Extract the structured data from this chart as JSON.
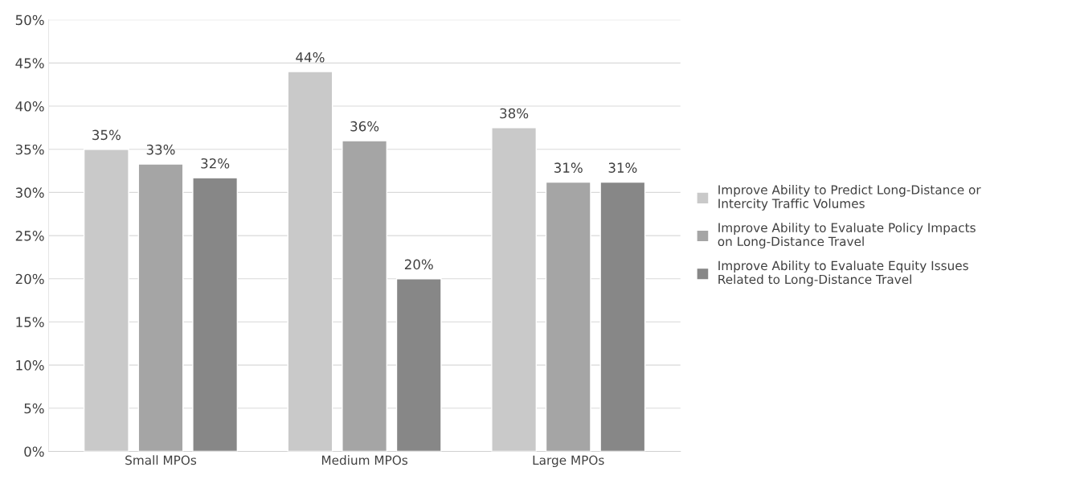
{
  "chart_data": {
    "type": "bar",
    "categories": [
      "Small MPOs",
      "Medium MPOs",
      "Large MPOs"
    ],
    "series": [
      {
        "name": "Improve Ability to Predict Long-Distance or\nIntercity Traffic Volumes",
        "color": "#c9c9c9",
        "values": [
          35,
          44,
          37.5
        ],
        "value_labels": [
          "35%",
          "44%",
          "38%"
        ]
      },
      {
        "name": "Improve Ability to Evaluate Policy Impacts\non Long-Distance Travel",
        "color": "#a5a5a5",
        "values": [
          33.3,
          36,
          31.2
        ],
        "value_labels": [
          "33%",
          "36%",
          "31%"
        ]
      },
      {
        "name": "Improve Ability to Evaluate Equity Issues\nRelated to Long-Distance Travel",
        "color": "#878787",
        "values": [
          31.7,
          20,
          31.2
        ],
        "value_labels": [
          "32%",
          "20%",
          "31%"
        ]
      }
    ],
    "ylim": [
      0,
      50
    ],
    "yticks": [
      {
        "value": 0,
        "label": "0%"
      },
      {
        "value": 5,
        "label": "5%"
      },
      {
        "value": 10,
        "label": "10%"
      },
      {
        "value": 15,
        "label": "15%"
      },
      {
        "value": 20,
        "label": "20%"
      },
      {
        "value": 25,
        "label": "25%"
      },
      {
        "value": 30,
        "label": "30%"
      },
      {
        "value": 35,
        "label": "35%"
      },
      {
        "value": 40,
        "label": "40%"
      },
      {
        "value": 45,
        "label": "45%"
      },
      {
        "value": 50,
        "label": "50%"
      }
    ],
    "grid": "y",
    "legend": "right"
  }
}
